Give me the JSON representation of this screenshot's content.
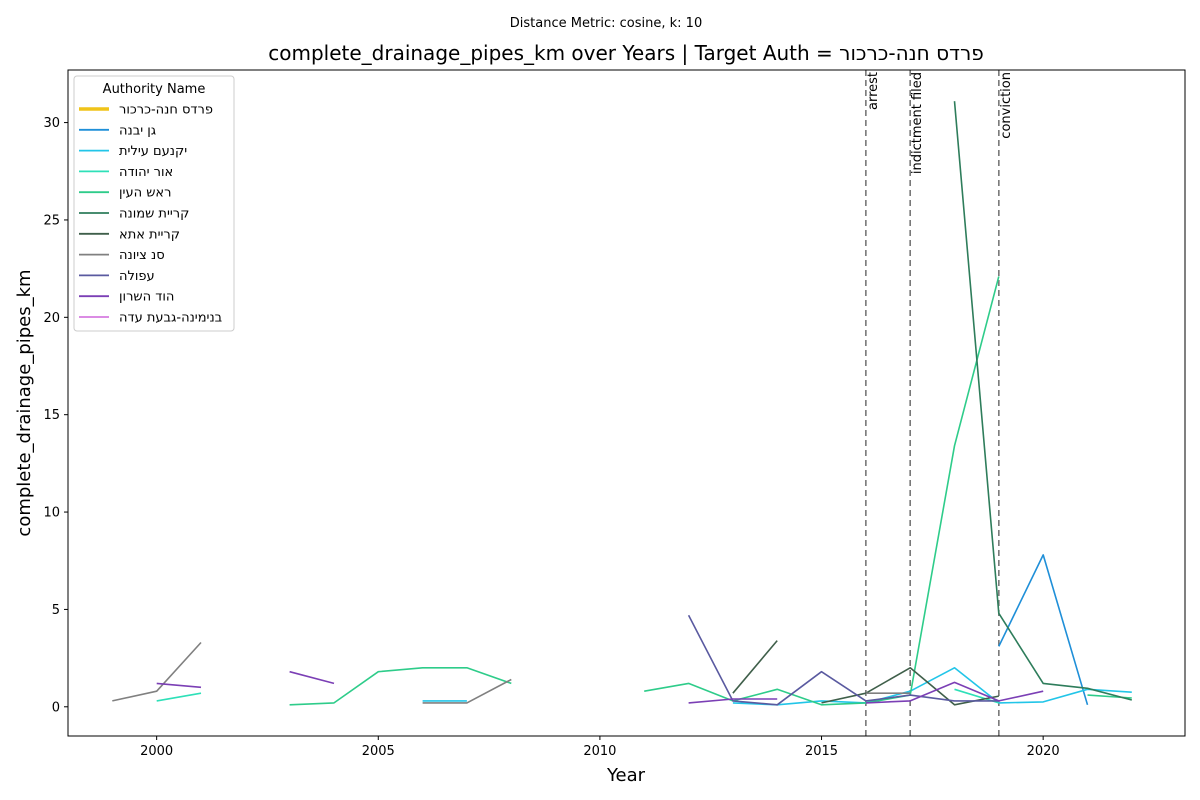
{
  "chart_data": {
    "type": "line",
    "suptitle": "Distance Metric: cosine, k: 10",
    "title": "complete_drainage_pipes_km over Years | Target Auth = פרדס חנה-כרכור",
    "xlabel": "Year",
    "ylabel": "complete_drainage_pipes_km",
    "xlim": [
      1998.0,
      2023.2
    ],
    "ylim": [
      -1.5,
      32.7
    ],
    "xticks": [
      2000,
      2005,
      2010,
      2015,
      2020
    ],
    "yticks": [
      0,
      5,
      10,
      15,
      20,
      25,
      30
    ],
    "grid": false,
    "legend": {
      "title": "Authority Name",
      "placement": "top-left"
    },
    "vlines": [
      {
        "x": 2016,
        "label": "arrest"
      },
      {
        "x": 2017,
        "label": "indictment filed"
      },
      {
        "x": 2019,
        "label": "conviction"
      }
    ],
    "series": [
      {
        "name": "פרדס חנה-כרכור",
        "color": "#f0c419",
        "segments": []
      },
      {
        "name": "גן יבנה",
        "color": "#1f8fd8",
        "segments": [
          [
            [
              2019,
              3.1
            ],
            [
              2020,
              7.8
            ],
            [
              2021,
              0.1
            ]
          ]
        ]
      },
      {
        "name": "יקנעם עילית",
        "color": "#22c5e8",
        "segments": [
          [
            [
              2006,
              0.3
            ],
            [
              2007,
              0.3
            ]
          ],
          [
            [
              2013,
              0.2
            ],
            [
              2014,
              0.1
            ],
            [
              2015,
              0.3
            ],
            [
              2016,
              0.2
            ],
            [
              2017,
              0.8
            ],
            [
              2018,
              2.0
            ],
            [
              2019,
              0.2
            ],
            [
              2020,
              0.25
            ],
            [
              2021,
              0.9
            ],
            [
              2022,
              0.75
            ]
          ]
        ]
      },
      {
        "name": "אור יהודה",
        "color": "#2ee0b8",
        "segments": [
          [
            [
              2000,
              0.3
            ],
            [
              2001,
              0.7
            ]
          ],
          [
            [
              2018,
              0.9
            ],
            [
              2019,
              0.2
            ]
          ]
        ]
      },
      {
        "name": "ראש העין",
        "color": "#2ecc8a",
        "segments": [
          [
            [
              2003,
              0.1
            ],
            [
              2004,
              0.2
            ],
            [
              2005,
              1.8
            ],
            [
              2006,
              2.0
            ],
            [
              2007,
              2.0
            ],
            [
              2008,
              1.2
            ]
          ],
          [
            [
              2011,
              0.8
            ],
            [
              2012,
              1.2
            ],
            [
              2013,
              0.3
            ],
            [
              2014,
              0.9
            ],
            [
              2015,
              0.1
            ],
            [
              2016,
              0.2
            ],
            [
              2017,
              0.6
            ],
            [
              2018,
              13.4
            ],
            [
              2019,
              22.1
            ]
          ],
          [
            [
              2021,
              0.6
            ],
            [
              2022,
              0.45
            ]
          ]
        ]
      },
      {
        "name": "קריית שמונה",
        "color": "#2e7d5b",
        "segments": [
          [
            [
              2018,
              31.1
            ],
            [
              2019,
              4.8
            ],
            [
              2020,
              1.2
            ],
            [
              2021,
              0.95
            ],
            [
              2022,
              0.35
            ]
          ]
        ]
      },
      {
        "name": "קריית אתא",
        "color": "#3f5f4a",
        "segments": [
          [
            [
              2013,
              0.7
            ],
            [
              2014,
              3.4
            ]
          ],
          [
            [
              2015,
              0.2
            ],
            [
              2016,
              0.7
            ],
            [
              2017,
              2.0
            ],
            [
              2018,
              0.1
            ],
            [
              2019,
              0.55
            ]
          ]
        ]
      },
      {
        "name": "סנ ציונה",
        "color": "#808080",
        "segments": [
          [
            [
              1999,
              0.3
            ],
            [
              2000,
              0.8
            ],
            [
              2001,
              3.3
            ]
          ],
          [
            [
              2006,
              0.2
            ],
            [
              2007,
              0.2
            ],
            [
              2008,
              1.4
            ]
          ],
          [
            [
              2016,
              0.7
            ],
            [
              2017,
              0.7
            ]
          ]
        ]
      },
      {
        "name": "עפולה",
        "color": "#5a5aa0",
        "segments": [
          [
            [
              2012,
              4.7
            ],
            [
              2013,
              0.3
            ],
            [
              2014,
              0.1
            ],
            [
              2015,
              1.8
            ],
            [
              2016,
              0.3
            ],
            [
              2017,
              0.6
            ],
            [
              2018,
              0.3
            ],
            [
              2019,
              0.3
            ]
          ]
        ]
      },
      {
        "name": "הוד השרון",
        "color": "#7b3fb5",
        "segments": [
          [
            [
              2000,
              1.2
            ],
            [
              2001,
              1.0
            ]
          ],
          [
            [
              2003,
              1.8
            ],
            [
              2004,
              1.2
            ]
          ],
          [
            [
              2012,
              0.2
            ],
            [
              2013,
              0.4
            ],
            [
              2014,
              0.4
            ]
          ],
          [
            [
              2016,
              0.2
            ],
            [
              2017,
              0.3
            ],
            [
              2018,
              1.25
            ],
            [
              2019,
              0.3
            ],
            [
              2020,
              0.8
            ]
          ]
        ]
      },
      {
        "name": "בנימינה-גבעת עדה",
        "color": "#d67be0",
        "segments": []
      }
    ]
  }
}
